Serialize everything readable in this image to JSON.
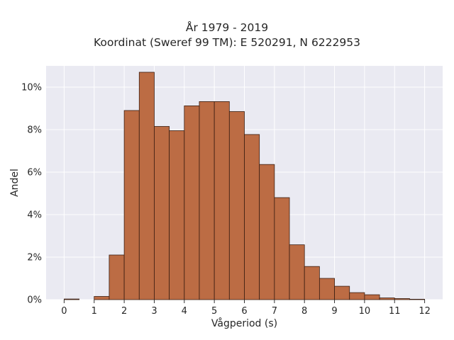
{
  "title_line1": "År 1979 - 2019",
  "title_line2": "Koordinat (Sweref 99 TM): E 520291, N 6222953",
  "chart_data": {
    "type": "bar",
    "xlabel": "Vågperiod (s)",
    "ylabel": "Andel",
    "xlim": [
      -0.6,
      12.6
    ],
    "ylim": [
      0,
      0.11
    ],
    "xticks": [
      0,
      1,
      2,
      3,
      4,
      5,
      6,
      7,
      8,
      9,
      10,
      11,
      12
    ],
    "yticks": [
      0,
      0.02,
      0.04,
      0.06,
      0.08,
      0.1
    ],
    "ytick_labels": [
      "0%",
      "2%",
      "4%",
      "6%",
      "8%",
      "10%"
    ],
    "bin_width": 0.5,
    "bin_starts": [
      0,
      1,
      1.5,
      2,
      2.5,
      3,
      3.5,
      4,
      4.5,
      5,
      5.5,
      6,
      6.5,
      7,
      7.5,
      8,
      8.5,
      9,
      9.5,
      10,
      10.5,
      11,
      11.5
    ],
    "values": [
      0.0003,
      0.0015,
      0.021,
      0.089,
      0.107,
      0.0815,
      0.0795,
      0.0912,
      0.0932,
      0.0932,
      0.0885,
      0.0777,
      0.0636,
      0.048,
      0.0258,
      0.0156,
      0.01,
      0.0063,
      0.0033,
      0.0023,
      0.0008,
      0.0005,
      0.0002
    ],
    "bar_color": "#b9653a",
    "bar_edge": "#3a1e12",
    "plot_background": "#eaeaf2",
    "grid": true,
    "grid_color": "#ffffff"
  }
}
